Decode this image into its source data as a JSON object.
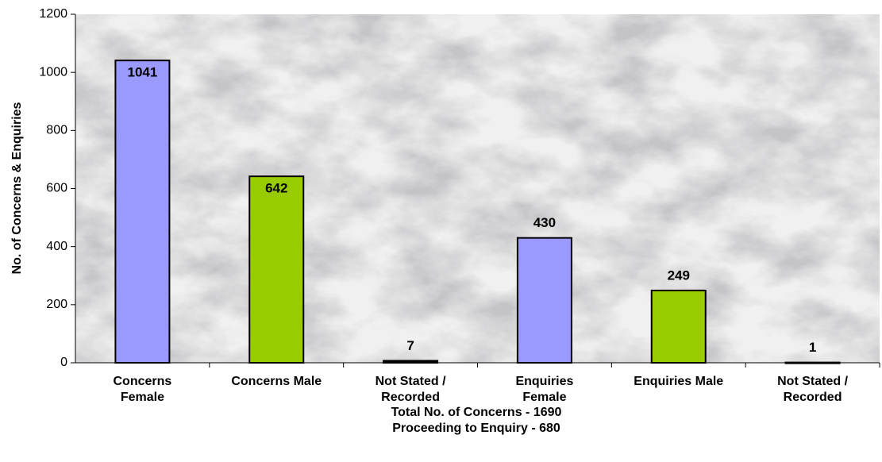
{
  "chart_data": {
    "type": "bar",
    "ylabel": "No. of Concerns & Enquiries",
    "xlabel": "Total No. of Concerns - 1690\nProceeding to Enquiry - 680",
    "categories": [
      "Concerns\nFemale",
      "Concerns Male",
      "Not Stated /\nRecorded",
      "Enquiries\nFemale",
      "Enquiries Male",
      "Not Stated /\nRecorded"
    ],
    "values": [
      1041,
      642,
      7,
      430,
      249,
      1
    ],
    "colors": [
      "#9999ff",
      "#99cc00",
      "#000000",
      "#9999ff",
      "#99cc00",
      "#000000"
    ],
    "ylim": [
      0,
      1200
    ],
    "yticks": [
      0,
      200,
      400,
      600,
      800,
      1000,
      1200
    ]
  }
}
